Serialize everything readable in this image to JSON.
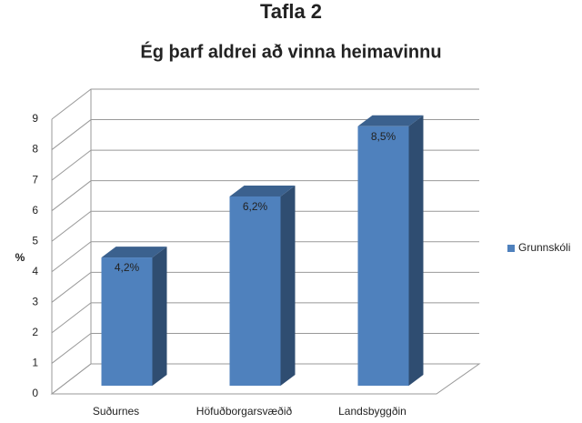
{
  "chart_data": {
    "type": "bar3d",
    "title": "Tafla 2",
    "subtitle": "Ég þarf aldrei að vinna heimavinnu",
    "y_label": "%",
    "categories": [
      "Suðurnes",
      "Höfuðborgarsvæðið",
      "Landsbyggðin"
    ],
    "series": [
      {
        "name": "Grunnskóli",
        "color": "#4f81bd",
        "values": [
          4.2,
          6.2,
          8.5
        ],
        "value_labels": [
          "4,2%",
          "6,2%",
          "8,5%"
        ]
      }
    ],
    "ylim": [
      0,
      9
    ],
    "yticks": [
      0,
      1,
      2,
      3,
      4,
      5,
      6,
      7,
      8,
      9
    ],
    "grid": true,
    "legend": "right"
  }
}
